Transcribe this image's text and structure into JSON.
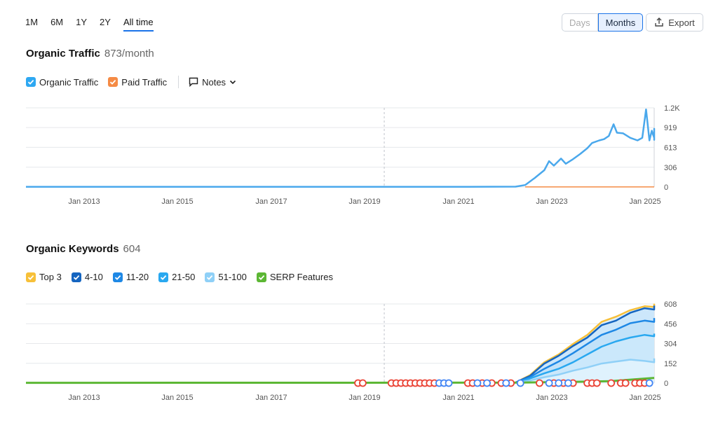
{
  "range_tabs": [
    "1M",
    "6M",
    "1Y",
    "2Y",
    "All time"
  ],
  "active_range": "All time",
  "toggle": {
    "days": "Days",
    "months": "Months"
  },
  "export_label": "Export",
  "traffic": {
    "title": "Organic Traffic",
    "meta": "873/month",
    "legend": [
      {
        "label": "Organic Traffic",
        "color": "#2ea8f2"
      },
      {
        "label": "Paid Traffic",
        "color": "#f58b45"
      }
    ],
    "notes_label": "Notes"
  },
  "keywords": {
    "title": "Organic Keywords",
    "meta": "604",
    "legend": [
      {
        "label": "Top 3",
        "color": "#f7c039"
      },
      {
        "label": "4-10",
        "color": "#1565c0"
      },
      {
        "label": "11-20",
        "color": "#1e88e5"
      },
      {
        "label": "21-50",
        "color": "#29a8f0"
      },
      {
        "label": "51-100",
        "color": "#8fd0f7"
      },
      {
        "label": "SERP Features",
        "color": "#5cb734"
      }
    ]
  },
  "chart_data": [
    {
      "type": "line",
      "y_ticks": [
        0,
        306,
        613,
        919,
        1224
      ],
      "y_tick_labels": [
        "0",
        "306",
        "613",
        "919",
        "1.2K"
      ],
      "ylim": [
        0,
        1224
      ],
      "x_tick_labels": [
        "Jan 2013",
        "Jan 2015",
        "Jan 2017",
        "Jan 2019",
        "Jan 2021",
        "Jan 2023",
        "Jan 2025"
      ],
      "x_range": [
        2011.75,
        2024.9
      ],
      "divider_x": 2019.25,
      "series": [
        {
          "name": "Organic Traffic",
          "color": "#4aa8ec",
          "points": [
            [
              2011.75,
              3
            ],
            [
              2021.0,
              3
            ],
            [
              2022.0,
              5
            ],
            [
              2022.2,
              30
            ],
            [
              2022.4,
              140
            ],
            [
              2022.6,
              260
            ],
            [
              2022.7,
              400
            ],
            [
              2022.8,
              330
            ],
            [
              2022.95,
              440
            ],
            [
              2023.05,
              360
            ],
            [
              2023.2,
              430
            ],
            [
              2023.35,
              510
            ],
            [
              2023.5,
              600
            ],
            [
              2023.6,
              680
            ],
            [
              2023.75,
              720
            ],
            [
              2023.85,
              740
            ],
            [
              2023.95,
              790
            ],
            [
              2024.05,
              970
            ],
            [
              2024.12,
              840
            ],
            [
              2024.25,
              830
            ],
            [
              2024.4,
              760
            ],
            [
              2024.55,
              720
            ],
            [
              2024.65,
              760
            ],
            [
              2024.73,
              1200
            ],
            [
              2024.8,
              720
            ],
            [
              2024.85,
              870
            ],
            [
              2024.9,
              760
            ],
            [
              2024.95,
              900
            ],
            [
              2025.0,
              780
            ],
            [
              2025.05,
              730
            ],
            [
              2025.1,
              880
            ]
          ]
        },
        {
          "name": "Paid Traffic",
          "color": "#f58b45",
          "points": [
            [
              2022.2,
              1
            ],
            [
              2025.1,
              1
            ]
          ]
        }
      ]
    },
    {
      "type": "area",
      "y_ticks": [
        0,
        152,
        304,
        456,
        608
      ],
      "y_tick_labels": [
        "0",
        "152",
        "304",
        "456",
        "608"
      ],
      "ylim": [
        0,
        608
      ],
      "x_tick_labels": [
        "Jan 2013",
        "Jan 2015",
        "Jan 2017",
        "Jan 2019",
        "Jan 2021",
        "Jan 2023",
        "Jan 2025"
      ],
      "x_range": [
        2011.75,
        2024.9
      ],
      "divider_x": 2019.25,
      "series": [
        {
          "name": "Top 3",
          "color": "#f7c039",
          "points": [
            [
              2022.0,
              5
            ],
            [
              2022.3,
              60
            ],
            [
              2022.6,
              160
            ],
            [
              2022.9,
              220
            ],
            [
              2023.2,
              300
            ],
            [
              2023.5,
              370
            ],
            [
              2023.8,
              470
            ],
            [
              2024.1,
              510
            ],
            [
              2024.4,
              560
            ],
            [
              2024.7,
              590
            ],
            [
              2024.9,
              585
            ],
            [
              2025.1,
              610
            ]
          ]
        },
        {
          "name": "4-10",
          "color": "#1565c0",
          "points": [
            [
              2022.0,
              5
            ],
            [
              2022.3,
              55
            ],
            [
              2022.6,
              150
            ],
            [
              2022.9,
              210
            ],
            [
              2023.2,
              285
            ],
            [
              2023.5,
              350
            ],
            [
              2023.8,
              445
            ],
            [
              2024.1,
              480
            ],
            [
              2024.4,
              540
            ],
            [
              2024.7,
              575
            ],
            [
              2024.9,
              565
            ],
            [
              2025.1,
              595
            ]
          ]
        },
        {
          "name": "11-20",
          "color": "#1e88e5",
          "points": [
            [
              2022.0,
              4
            ],
            [
              2022.3,
              45
            ],
            [
              2022.6,
              110
            ],
            [
              2022.9,
              165
            ],
            [
              2023.2,
              230
            ],
            [
              2023.5,
              300
            ],
            [
              2023.8,
              370
            ],
            [
              2024.1,
              410
            ],
            [
              2024.4,
              460
            ],
            [
              2024.7,
              480
            ],
            [
              2024.9,
              470
            ],
            [
              2025.1,
              500
            ]
          ]
        },
        {
          "name": "21-50",
          "color": "#29a8f0",
          "points": [
            [
              2022.0,
              3
            ],
            [
              2022.3,
              35
            ],
            [
              2022.6,
              75
            ],
            [
              2022.9,
              110
            ],
            [
              2023.2,
              160
            ],
            [
              2023.5,
              220
            ],
            [
              2023.8,
              280
            ],
            [
              2024.1,
              320
            ],
            [
              2024.4,
              350
            ],
            [
              2024.7,
              370
            ],
            [
              2024.9,
              360
            ],
            [
              2025.1,
              380
            ]
          ]
        },
        {
          "name": "51-100",
          "color": "#8fd0f7",
          "points": [
            [
              2022.0,
              2
            ],
            [
              2022.3,
              20
            ],
            [
              2022.6,
              45
            ],
            [
              2022.9,
              65
            ],
            [
              2023.2,
              95
            ],
            [
              2023.5,
              120
            ],
            [
              2023.8,
              150
            ],
            [
              2024.1,
              165
            ],
            [
              2024.4,
              180
            ],
            [
              2024.7,
              170
            ],
            [
              2024.9,
              160
            ],
            [
              2025.1,
              190
            ]
          ]
        },
        {
          "name": "SERP Features",
          "color": "#5cb734",
          "points": [
            [
              2011.75,
              2
            ],
            [
              2022.0,
              3
            ],
            [
              2023.0,
              8
            ],
            [
              2024.0,
              15
            ],
            [
              2025.1,
              40
            ]
          ]
        }
      ],
      "markers": [
        {
          "label": "G",
          "color": "#ea4335",
          "x": [
            2018.7,
            2018.8,
            2019.4,
            2019.5,
            2019.6,
            2019.7,
            2019.8,
            2019.9,
            2020.0,
            2020.1,
            2020.2,
            2020.3,
            2021.0,
            2021.1,
            2021.3,
            2021.5,
            2021.7,
            2021.9,
            2022.5,
            2022.8,
            2023.0,
            2023.2,
            2023.5,
            2023.6,
            2023.7,
            2024.0,
            2024.2,
            2024.3,
            2024.5,
            2024.6,
            2024.7
          ]
        },
        {
          "label": "G",
          "color": "#4285f4",
          "x": [
            2020.4,
            2020.5,
            2020.6,
            2021.2,
            2021.4,
            2021.8,
            2022.1,
            2022.7,
            2022.9,
            2023.1,
            2024.8
          ]
        }
      ]
    }
  ]
}
